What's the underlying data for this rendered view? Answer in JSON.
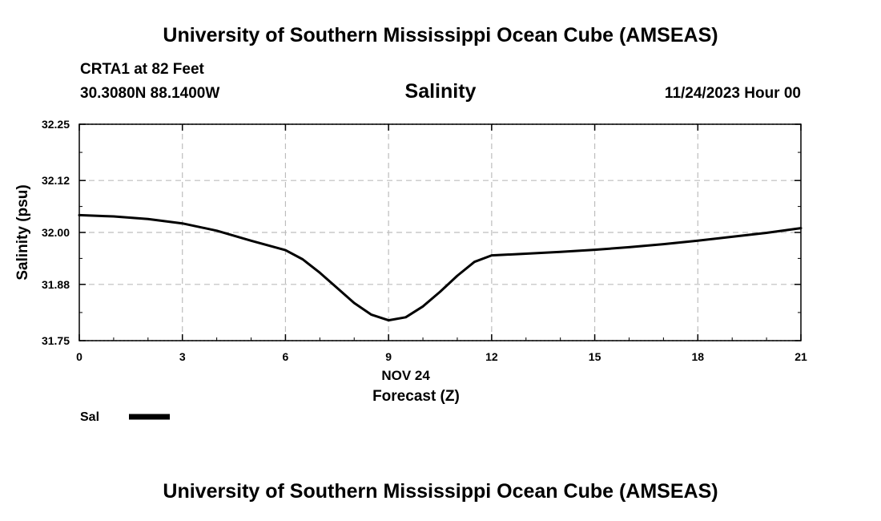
{
  "header": {
    "title": "University of Southern Mississippi Ocean Cube (AMSEAS)",
    "station": "CRTA1 at 82 Feet",
    "coordinates": "30.3080N  88.1400W",
    "datetime": "11/24/2023 Hour 00"
  },
  "footer": {
    "title": "University of Southern Mississippi Ocean Cube (AMSEAS)"
  },
  "chart_data": {
    "type": "line",
    "title": "Salinity",
    "xlabel": "Forecast (Z)",
    "xlabel_date": "NOV 24",
    "ylabel": "Salinity (psu)",
    "xlim": [
      0,
      21
    ],
    "ylim": [
      31.75,
      32.25
    ],
    "xticks": [
      0,
      3,
      6,
      9,
      12,
      15,
      18,
      21
    ],
    "yticks": [
      31.75,
      31.88,
      32.0,
      32.12,
      32.25
    ],
    "ytick_labels": [
      "31.75",
      "31.88",
      "32.00",
      "32.12",
      "32.25"
    ],
    "grid": true,
    "legend": "bottom-left",
    "series": [
      {
        "name": "Sal",
        "color": "#000000",
        "x": [
          0,
          1,
          2,
          3,
          4,
          5,
          6,
          6.5,
          7,
          7.5,
          8,
          8.5,
          9,
          9.5,
          10,
          10.5,
          11,
          11.5,
          12,
          13,
          14,
          15,
          16,
          17,
          18,
          19,
          20,
          21
        ],
        "y": [
          32.04,
          32.037,
          32.031,
          32.021,
          32.004,
          31.981,
          31.959,
          31.938,
          31.907,
          31.872,
          31.837,
          31.81,
          31.797,
          31.804,
          31.829,
          31.863,
          31.9,
          31.932,
          31.947,
          31.951,
          31.955,
          31.96,
          31.966,
          31.973,
          31.981,
          31.99,
          31.999,
          32.01
        ]
      }
    ]
  }
}
